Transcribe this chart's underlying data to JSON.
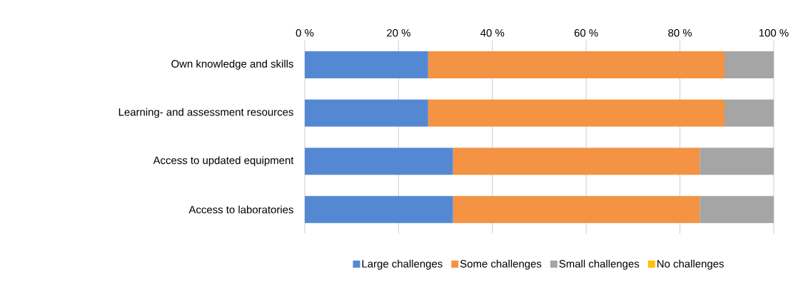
{
  "chart_data": {
    "type": "bar",
    "orientation": "horizontal",
    "stacked": true,
    "categories": [
      "Own knowledge and skills",
      "Learning- and assessment resources",
      "Access to updated equipment",
      "Access to laboratories"
    ],
    "series": [
      {
        "name": "Large challenges",
        "color": "#5588d3",
        "values": [
          26.3,
          26.3,
          31.6,
          31.6
        ]
      },
      {
        "name": "Some challenges",
        "color": "#f39343",
        "values": [
          63.2,
          63.2,
          52.6,
          52.6
        ]
      },
      {
        "name": "Small challenges",
        "color": "#a5a5a5",
        "values": [
          10.5,
          10.5,
          15.8,
          15.8
        ]
      },
      {
        "name": "No challenges",
        "color": "#ffc000",
        "values": [
          0,
          0,
          0,
          0
        ]
      }
    ],
    "xlim": [
      0,
      100
    ],
    "xticks": [
      {
        "value": 0,
        "label": "0 %"
      },
      {
        "value": 20,
        "label": "20 %"
      },
      {
        "value": 40,
        "label": "40 %"
      },
      {
        "value": 60,
        "label": "60 %"
      },
      {
        "value": 80,
        "label": "80 %"
      },
      {
        "value": 100,
        "label": "100 %"
      }
    ],
    "grid": "x",
    "legend": "bottom"
  }
}
